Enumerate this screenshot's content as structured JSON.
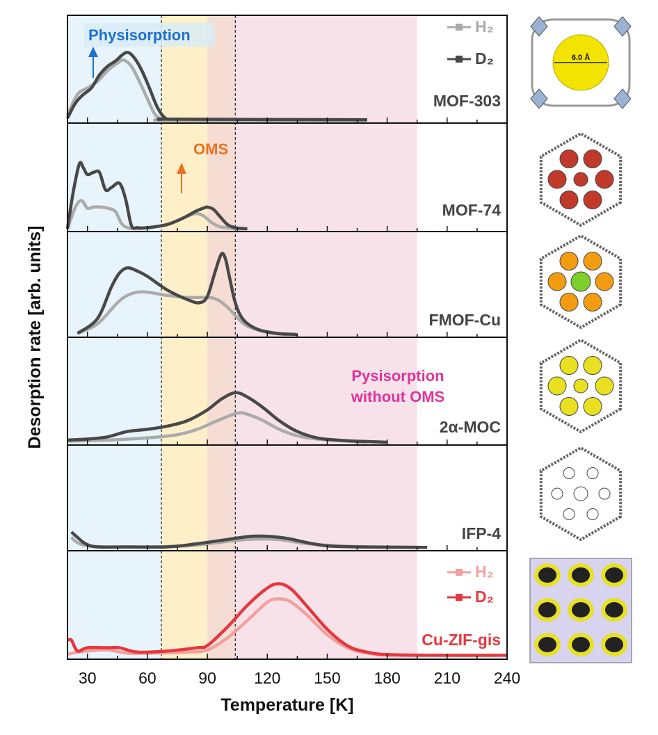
{
  "chart_data": {
    "type": "line",
    "xlabel": "Temperature [K]",
    "ylabel": "Desorption rate [arb. units]",
    "xlim": [
      20,
      240
    ],
    "xticks": [
      30,
      60,
      90,
      120,
      150,
      180,
      210,
      240
    ],
    "grid": false,
    "regions": [
      {
        "from": 20,
        "to": 67,
        "color": "#e7f4fb"
      },
      {
        "from": 67,
        "to": 90,
        "color": "#fdefc8"
      },
      {
        "from": 90,
        "to": 104,
        "color": "#f6ddd3"
      },
      {
        "from": 104,
        "to": 195,
        "color": "#f7e2ea"
      }
    ],
    "dashed_lines": [
      67,
      104
    ],
    "annotations": {
      "physisorption": {
        "text": "Physisorption",
        "color": "#1e6fd0"
      },
      "oms": {
        "text": "OMS",
        "color": "#ec7020"
      },
      "pysisorption_no_oms": {
        "line1": "Pysisorption",
        "line2": "without OMS",
        "color": "#e0339a"
      }
    },
    "legends": [
      {
        "panel": "MOF-303",
        "entries": [
          {
            "label": "H₂",
            "color": "#ababab"
          },
          {
            "label": "D₂",
            "color": "#484848"
          }
        ]
      },
      {
        "panel": "Cu-ZIF-gis",
        "entries": [
          {
            "label": "H₂",
            "color": "#f2a0a0"
          },
          {
            "label": "D₂",
            "color": "#e5383e"
          }
        ]
      }
    ],
    "panels": [
      {
        "name": "MOF-303",
        "label_color": "#444444",
        "structure_label": "6.0 Å",
        "series": [
          {
            "name": "H₂",
            "color": "#ababab",
            "x": [
              20,
              25,
              30,
              35,
              40,
              45,
              48,
              52,
              56,
              60,
              64,
              68,
              72,
              170
            ],
            "y": [
              0.05,
              0.24,
              0.3,
              0.36,
              0.46,
              0.53,
              0.56,
              0.5,
              0.36,
              0.2,
              0.05,
              0.01,
              0.0,
              0.0
            ]
          },
          {
            "name": "D₂",
            "color": "#484848",
            "x": [
              20,
              24,
              28,
              32,
              36,
              40,
              44,
              47,
              50,
              53,
              57,
              61,
              65,
              69,
              74,
              170
            ],
            "y": [
              0.02,
              0.16,
              0.24,
              0.3,
              0.42,
              0.5,
              0.55,
              0.6,
              0.63,
              0.59,
              0.47,
              0.3,
              0.12,
              0.02,
              0.01,
              0.005
            ]
          }
        ]
      },
      {
        "name": "MOF-74",
        "series": [
          {
            "name": "H₂",
            "color": "#ababab",
            "x": [
              20,
              24,
              27,
              30,
              33,
              37,
              40,
              44,
              47,
              50,
              55,
              60,
              70,
              78,
              84,
              88,
              92,
              96,
              100,
              104,
              110
            ],
            "y": [
              0.0,
              0.2,
              0.26,
              0.19,
              0.2,
              0.2,
              0.19,
              0.16,
              0.05,
              0.01,
              0.0,
              0.01,
              0.04,
              0.1,
              0.14,
              0.12,
              0.06,
              0.02,
              0.01,
              0.0,
              0.0
            ]
          },
          {
            "name": "D₂",
            "color": "#484848",
            "x": [
              20,
              23,
              26,
              28,
              30,
              33,
              36,
              39,
              42,
              46,
              49,
              52,
              55,
              60,
              70,
              78,
              84,
              88,
              90,
              93,
              96,
              100,
              104,
              110
            ],
            "y": [
              0.0,
              0.35,
              0.6,
              0.56,
              0.5,
              0.52,
              0.52,
              0.36,
              0.38,
              0.42,
              0.28,
              0.03,
              0.01,
              0.01,
              0.04,
              0.1,
              0.16,
              0.19,
              0.2,
              0.18,
              0.12,
              0.04,
              0.01,
              0.0
            ]
          }
        ]
      },
      {
        "name": "FMOF-Cu",
        "series": [
          {
            "name": "H₂",
            "color": "#ababab",
            "x": [
              25,
              35,
              45,
              50,
              55,
              60,
              70,
              80,
              90,
              95,
              100,
              105,
              110,
              120,
              130
            ],
            "y": [
              0.01,
              0.1,
              0.3,
              0.37,
              0.4,
              0.4,
              0.37,
              0.35,
              0.35,
              0.33,
              0.26,
              0.16,
              0.08,
              0.02,
              0.0
            ]
          },
          {
            "name": "D₂",
            "color": "#484848",
            "x": [
              25,
              35,
              42,
              46,
              50,
              55,
              60,
              70,
              80,
              86,
              90,
              94,
              97,
              99,
              101,
              104,
              108,
              115,
              125,
              135
            ],
            "y": [
              0.01,
              0.15,
              0.45,
              0.58,
              0.63,
              0.6,
              0.55,
              0.42,
              0.33,
              0.3,
              0.36,
              0.6,
              0.76,
              0.72,
              0.55,
              0.3,
              0.14,
              0.05,
              0.01,
              0.0
            ]
          }
        ]
      },
      {
        "name": "2α-MOC",
        "series": [
          {
            "name": "H₂",
            "color": "#ababab",
            "x": [
              20,
              40,
              60,
              75,
              85,
              95,
              105,
              110,
              118,
              126,
              135,
              145,
              160,
              170
            ],
            "y": [
              0.01,
              0.02,
              0.04,
              0.07,
              0.12,
              0.2,
              0.27,
              0.26,
              0.2,
              0.12,
              0.06,
              0.03,
              0.01,
              0.0
            ]
          },
          {
            "name": "D₂",
            "color": "#484848",
            "x": [
              20,
              30,
              40,
              50,
              60,
              70,
              80,
              90,
              97,
              104,
              110,
              118,
              126,
              135,
              145,
              155,
              165,
              180
            ],
            "y": [
              0.02,
              0.03,
              0.05,
              0.1,
              0.12,
              0.15,
              0.2,
              0.3,
              0.4,
              0.46,
              0.42,
              0.32,
              0.2,
              0.1,
              0.04,
              0.02,
              0.01,
              0.0
            ]
          }
        ]
      },
      {
        "name": "IFP-4",
        "series": [
          {
            "name": "H₂",
            "color": "#ababab",
            "x": [
              22,
              25,
              30,
              40,
              60,
              80,
              95,
              110,
              125,
              140,
              155,
              170,
              200
            ],
            "y": [
              0.1,
              0.05,
              0.02,
              0.01,
              0.01,
              0.02,
              0.05,
              0.08,
              0.08,
              0.04,
              0.02,
              0.01,
              0.005
            ]
          },
          {
            "name": "D₂",
            "color": "#484848",
            "x": [
              22,
              25,
              29,
              35,
              50,
              70,
              85,
              100,
              112,
              120,
              130,
              140,
              150,
              165,
              200
            ],
            "y": [
              0.15,
              0.1,
              0.04,
              0.01,
              0.01,
              0.01,
              0.04,
              0.08,
              0.11,
              0.11,
              0.09,
              0.05,
              0.02,
              0.01,
              0.005
            ]
          }
        ]
      },
      {
        "name": "Cu-ZIF-gis",
        "label_color": "#e5383e",
        "series": [
          {
            "name": "H₂",
            "color": "#f2a0a0",
            "x": [
              20,
              25,
              30,
              40,
              50,
              60,
              80,
              90,
              100,
              110,
              120,
              126,
              132,
              140,
              150,
              160,
              170,
              185,
              240
            ],
            "y": [
              0.02,
              0.04,
              0.05,
              0.06,
              0.03,
              0.03,
              0.04,
              0.06,
              0.17,
              0.33,
              0.5,
              0.53,
              0.5,
              0.38,
              0.2,
              0.08,
              0.03,
              0.01,
              0.01
            ]
          },
          {
            "name": "D₂",
            "color": "#e5383e",
            "x": [
              20,
              22,
              25,
              30,
              40,
              46,
              55,
              70,
              85,
              90,
              100,
              110,
              120,
              126,
              132,
              140,
              150,
              160,
              170,
              185,
              240
            ],
            "y": [
              0.15,
              0.15,
              0.05,
              0.08,
              0.08,
              0.08,
              0.04,
              0.05,
              0.08,
              0.1,
              0.27,
              0.47,
              0.63,
              0.67,
              0.62,
              0.46,
              0.25,
              0.1,
              0.04,
              0.015,
              0.01
            ]
          }
        ]
      }
    ]
  }
}
